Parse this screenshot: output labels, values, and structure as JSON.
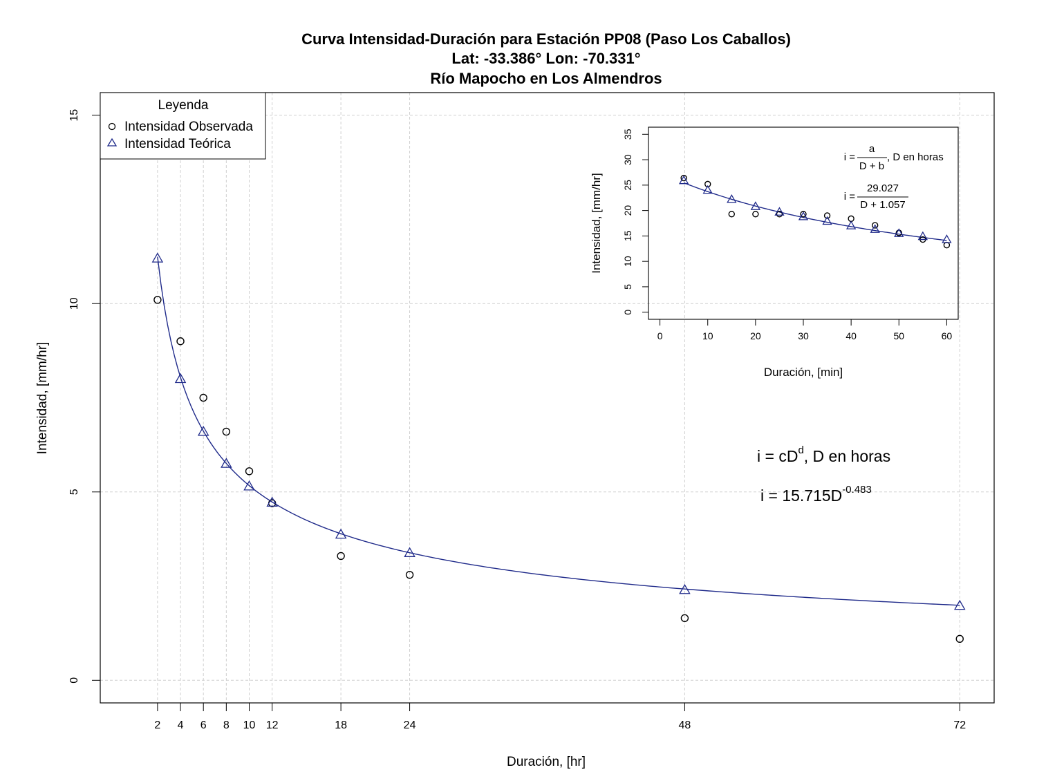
{
  "chart_data": [
    {
      "type": "scatter",
      "title_lines": [
        "Curva Intensidad-Duración para Estación PP08 (Paso Los Caballos)",
        "Lat: -33.386° Lon: -70.331°",
        "Río Mapocho en Los Almendros"
      ],
      "xlabel": "Duración, [hr]",
      "ylabel": "Intensidad, [mm/hr]",
      "xlim": [
        -3,
        75
      ],
      "ylim": [
        -0.6,
        15.6
      ],
      "x_ticks": [
        2,
        4,
        6,
        8,
        10,
        12,
        18,
        24,
        48,
        72
      ],
      "y_ticks": [
        0,
        5,
        10,
        15
      ],
      "grid": true,
      "legend": {
        "title": "Leyenda",
        "placement": "top-left",
        "entries": [
          "Intensidad Observada",
          "Intensidad Teórica"
        ]
      },
      "x": [
        2,
        4,
        6,
        8,
        10,
        12,
        18,
        24,
        48,
        72
      ],
      "series": [
        {
          "name": "Intensidad Observada",
          "marker": "circle",
          "color": "#000000",
          "values": [
            10.1,
            9.0,
            7.5,
            6.6,
            5.55,
            4.7,
            3.3,
            2.8,
            1.65,
            1.1
          ]
        },
        {
          "name": "Intensidad Teórica",
          "marker": "triangle",
          "color": "#1f2a8a",
          "values": [
            11.2,
            8.0,
            6.6,
            5.75,
            5.15,
            4.72,
            3.87,
            3.38,
            2.4,
            1.98
          ]
        }
      ],
      "fit_curve": {
        "c": 15.715,
        "d": -0.483,
        "color": "#1f2a8a"
      },
      "annotations": {
        "formula_general": {
          "base": "i = cD",
          "sup": "d",
          "tail": ", D en horas"
        },
        "formula_fit": {
          "base": "i = 15.715D",
          "sup": "-0.483"
        }
      }
    },
    {
      "type": "scatter",
      "xlabel": "Duración, [min]",
      "ylabel": "Intensidad, [mm/hr]",
      "xlim": [
        -2.4,
        62.4
      ],
      "ylim": [
        -1.4,
        36.4
      ],
      "x_ticks": [
        0,
        10,
        20,
        30,
        40,
        50,
        60
      ],
      "y_ticks": [
        0,
        5,
        10,
        15,
        20,
        25,
        30,
        35
      ],
      "x": [
        5,
        10,
        15,
        20,
        25,
        30,
        35,
        40,
        45,
        50,
        55,
        60
      ],
      "series": [
        {
          "name": "Intensidad Observada",
          "marker": "circle",
          "color": "#000000",
          "values": [
            26.4,
            25.2,
            19.3,
            19.3,
            19.3,
            19.3,
            19.0,
            18.4,
            17.1,
            15.6,
            14.3,
            13.2
          ]
        },
        {
          "name": "Intensidad Teórica",
          "marker": "triangle",
          "color": "#1f2a8a",
          "values": [
            25.9,
            24.0,
            22.2,
            20.8,
            19.7,
            18.8,
            17.9,
            17.0,
            16.3,
            15.5,
            14.9,
            14.3
          ]
        }
      ],
      "fit_curve": {
        "a": 29.027,
        "b": 1.057,
        "color": "#1f2a8a"
      },
      "annotations": {
        "formula_general": {
          "lhs": "i =",
          "num": "a",
          "den": "D + b",
          "tail": ", D en horas"
        },
        "formula_fit": {
          "lhs": "i =",
          "num": "29.027",
          "den": "D + 1.057"
        }
      }
    }
  ]
}
